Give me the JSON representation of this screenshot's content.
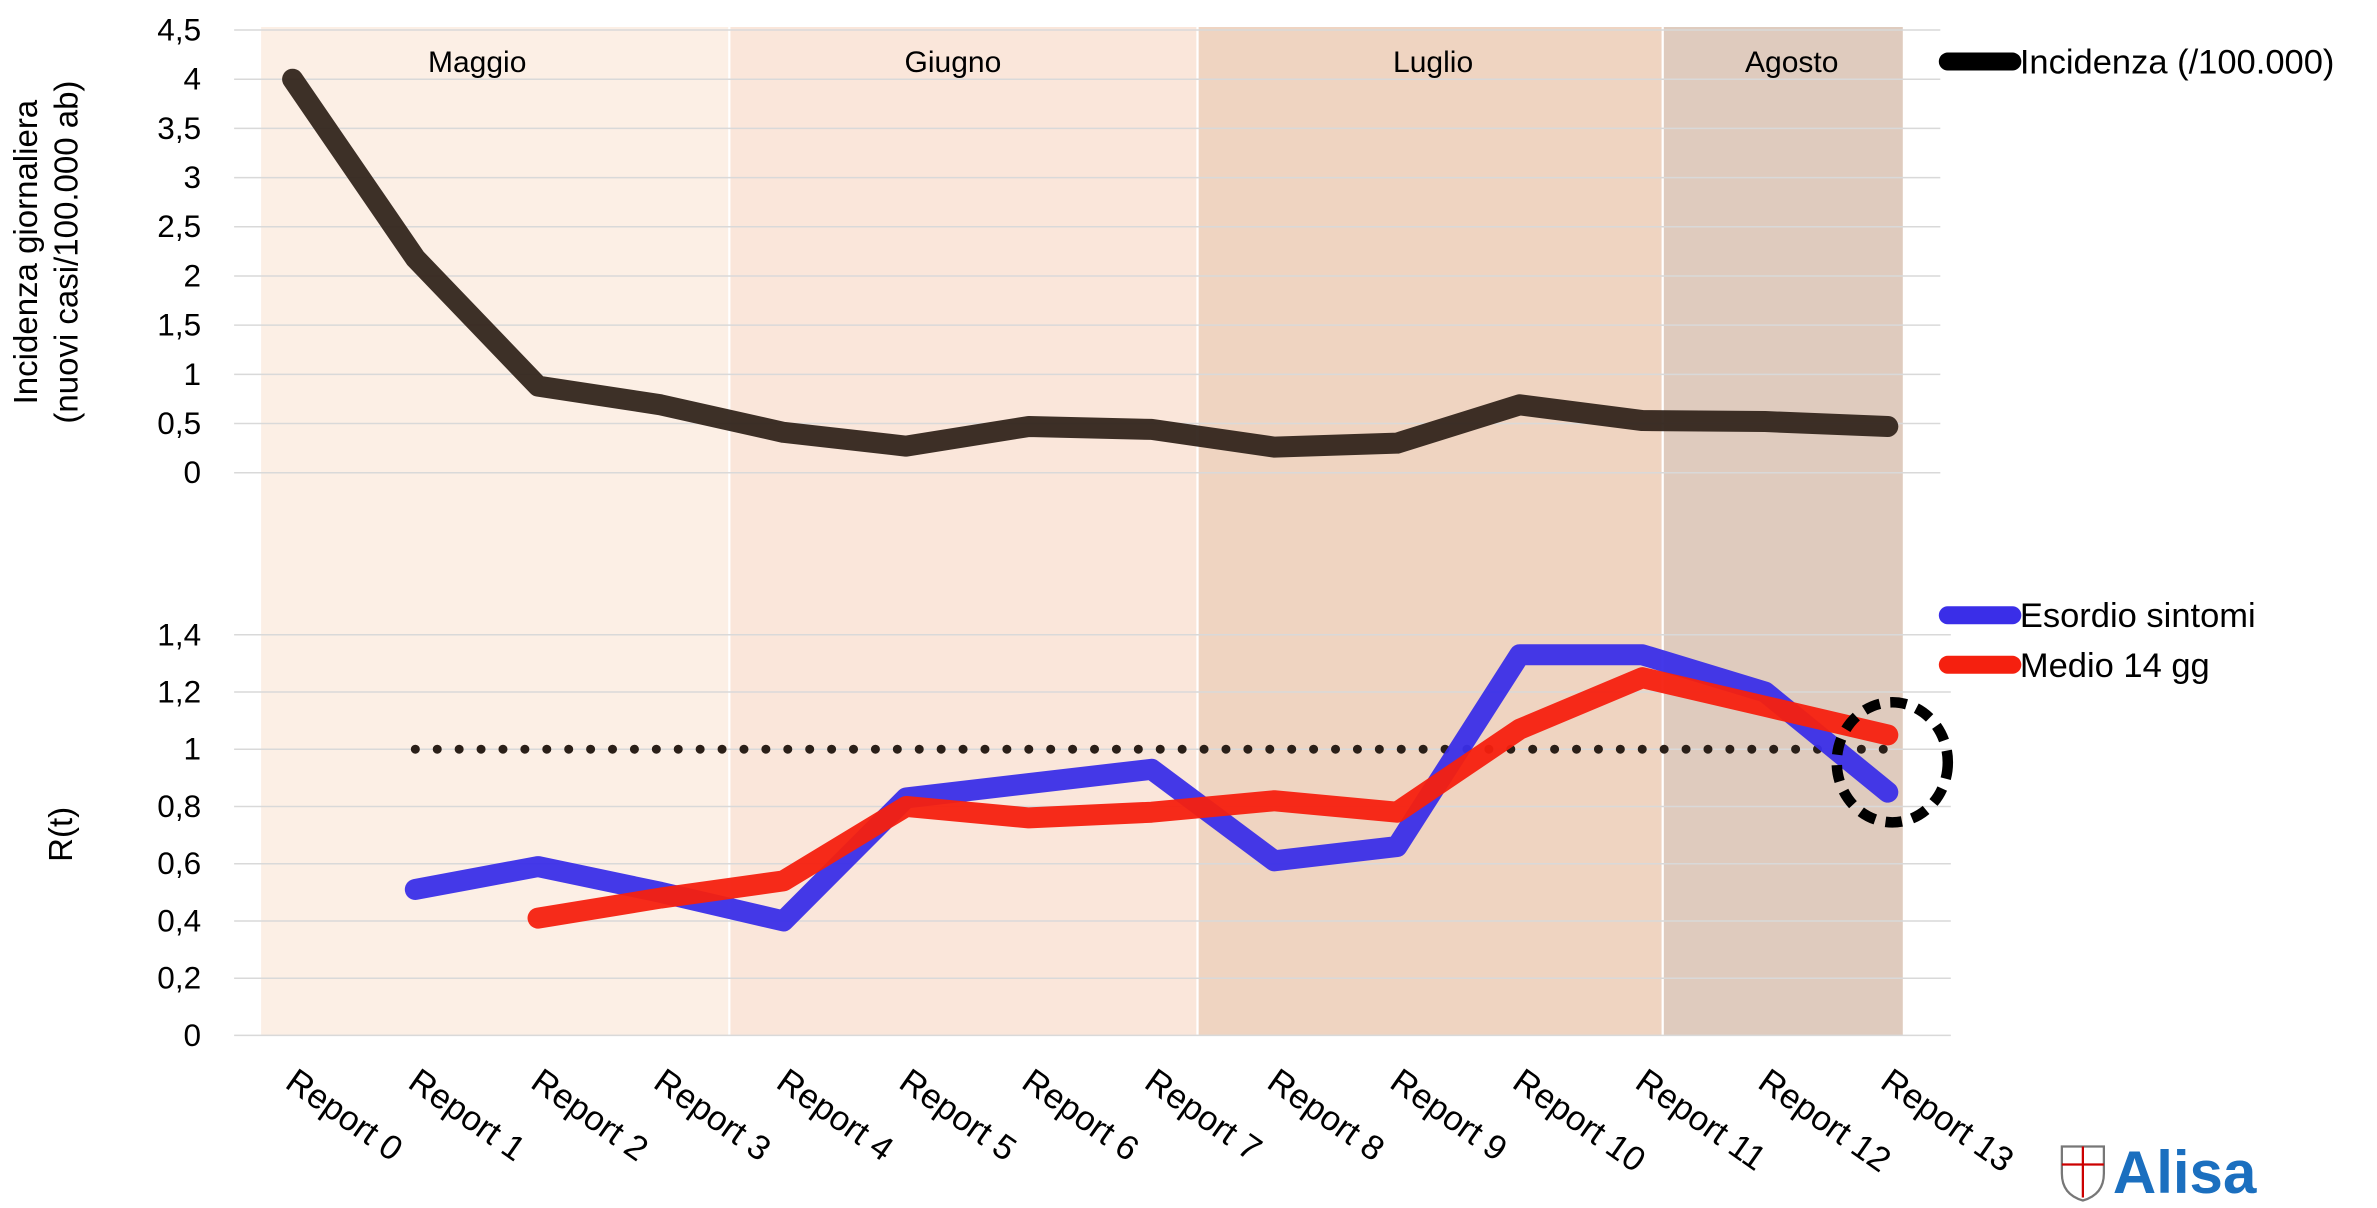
{
  "chart_data": [
    {
      "type": "line",
      "ylabel": [
        "Incidenza giornaliera",
        "(nuovi casi/100.000 ab)"
      ],
      "months": [
        "Maggio",
        "Giugno",
        "Luglio",
        "Agosto"
      ],
      "categories": [
        "Report 0",
        "Report 1",
        "Report 2",
        "Report 3",
        "Report 4",
        "Report 5",
        "Report 6",
        "Report 7",
        "Report 8",
        "Report 9",
        "Report 10",
        "Report 11",
        "Report 12",
        "Report 13"
      ],
      "series": [
        {
          "name": "Incidenza (/100.000)",
          "color": "#33251c",
          "values": [
            4.0,
            2.18,
            0.88,
            0.69,
            0.41,
            0.27,
            0.47,
            0.44,
            0.26,
            0.3,
            0.69,
            0.53,
            0.52,
            0.47
          ]
        }
      ],
      "ylim": [
        0,
        4.5
      ],
      "yticks": [
        0,
        {
          "value": 0.5,
          "label": "0,5"
        },
        1,
        {
          "value": 1.5,
          "label": "1,5"
        },
        2,
        {
          "value": 2.5,
          "label": "2,5"
        },
        3,
        {
          "value": 3.5,
          "label": "3,5"
        },
        4,
        {
          "value": 4.5,
          "label": "4,5"
        }
      ],
      "grid": true
    },
    {
      "type": "line",
      "ylabel": [
        "R(t)"
      ],
      "categories": [
        "Report 0",
        "Report 1",
        "Report 2",
        "Report 3",
        "Report 4",
        "Report 5",
        "Report 6",
        "Report 7",
        "Report 8",
        "Report 9",
        "Report 10",
        "Report 11",
        "Report 12",
        "Report 13"
      ],
      "series": [
        {
          "name": "Esordio sintomi",
          "color": "#3a2ee8",
          "values": [
            null,
            0.51,
            0.59,
            0.5,
            0.4,
            0.83,
            0.88,
            0.93,
            0.61,
            0.66,
            1.33,
            1.33,
            1.2,
            0.85
          ]
        },
        {
          "name": "Medio 14 gg",
          "color": "#f5200f",
          "values": [
            null,
            null,
            0.41,
            0.48,
            0.54,
            0.8,
            0.76,
            0.78,
            0.82,
            0.78,
            1.07,
            1.25,
            1.15,
            1.05
          ]
        }
      ],
      "threshold": 1,
      "ylim": [
        0,
        1.4
      ],
      "yticks": [
        0,
        {
          "value": 0.2,
          "label": "0,2"
        },
        {
          "value": 0.4,
          "label": "0,4"
        },
        {
          "value": 0.6,
          "label": "0,6"
        },
        {
          "value": 0.8,
          "label": "0,8"
        },
        1,
        {
          "value": 1.2,
          "label": "1,2"
        },
        {
          "value": 1.4,
          "label": "1,4"
        }
      ],
      "grid": true
    }
  ],
  "logo": "Alisa"
}
